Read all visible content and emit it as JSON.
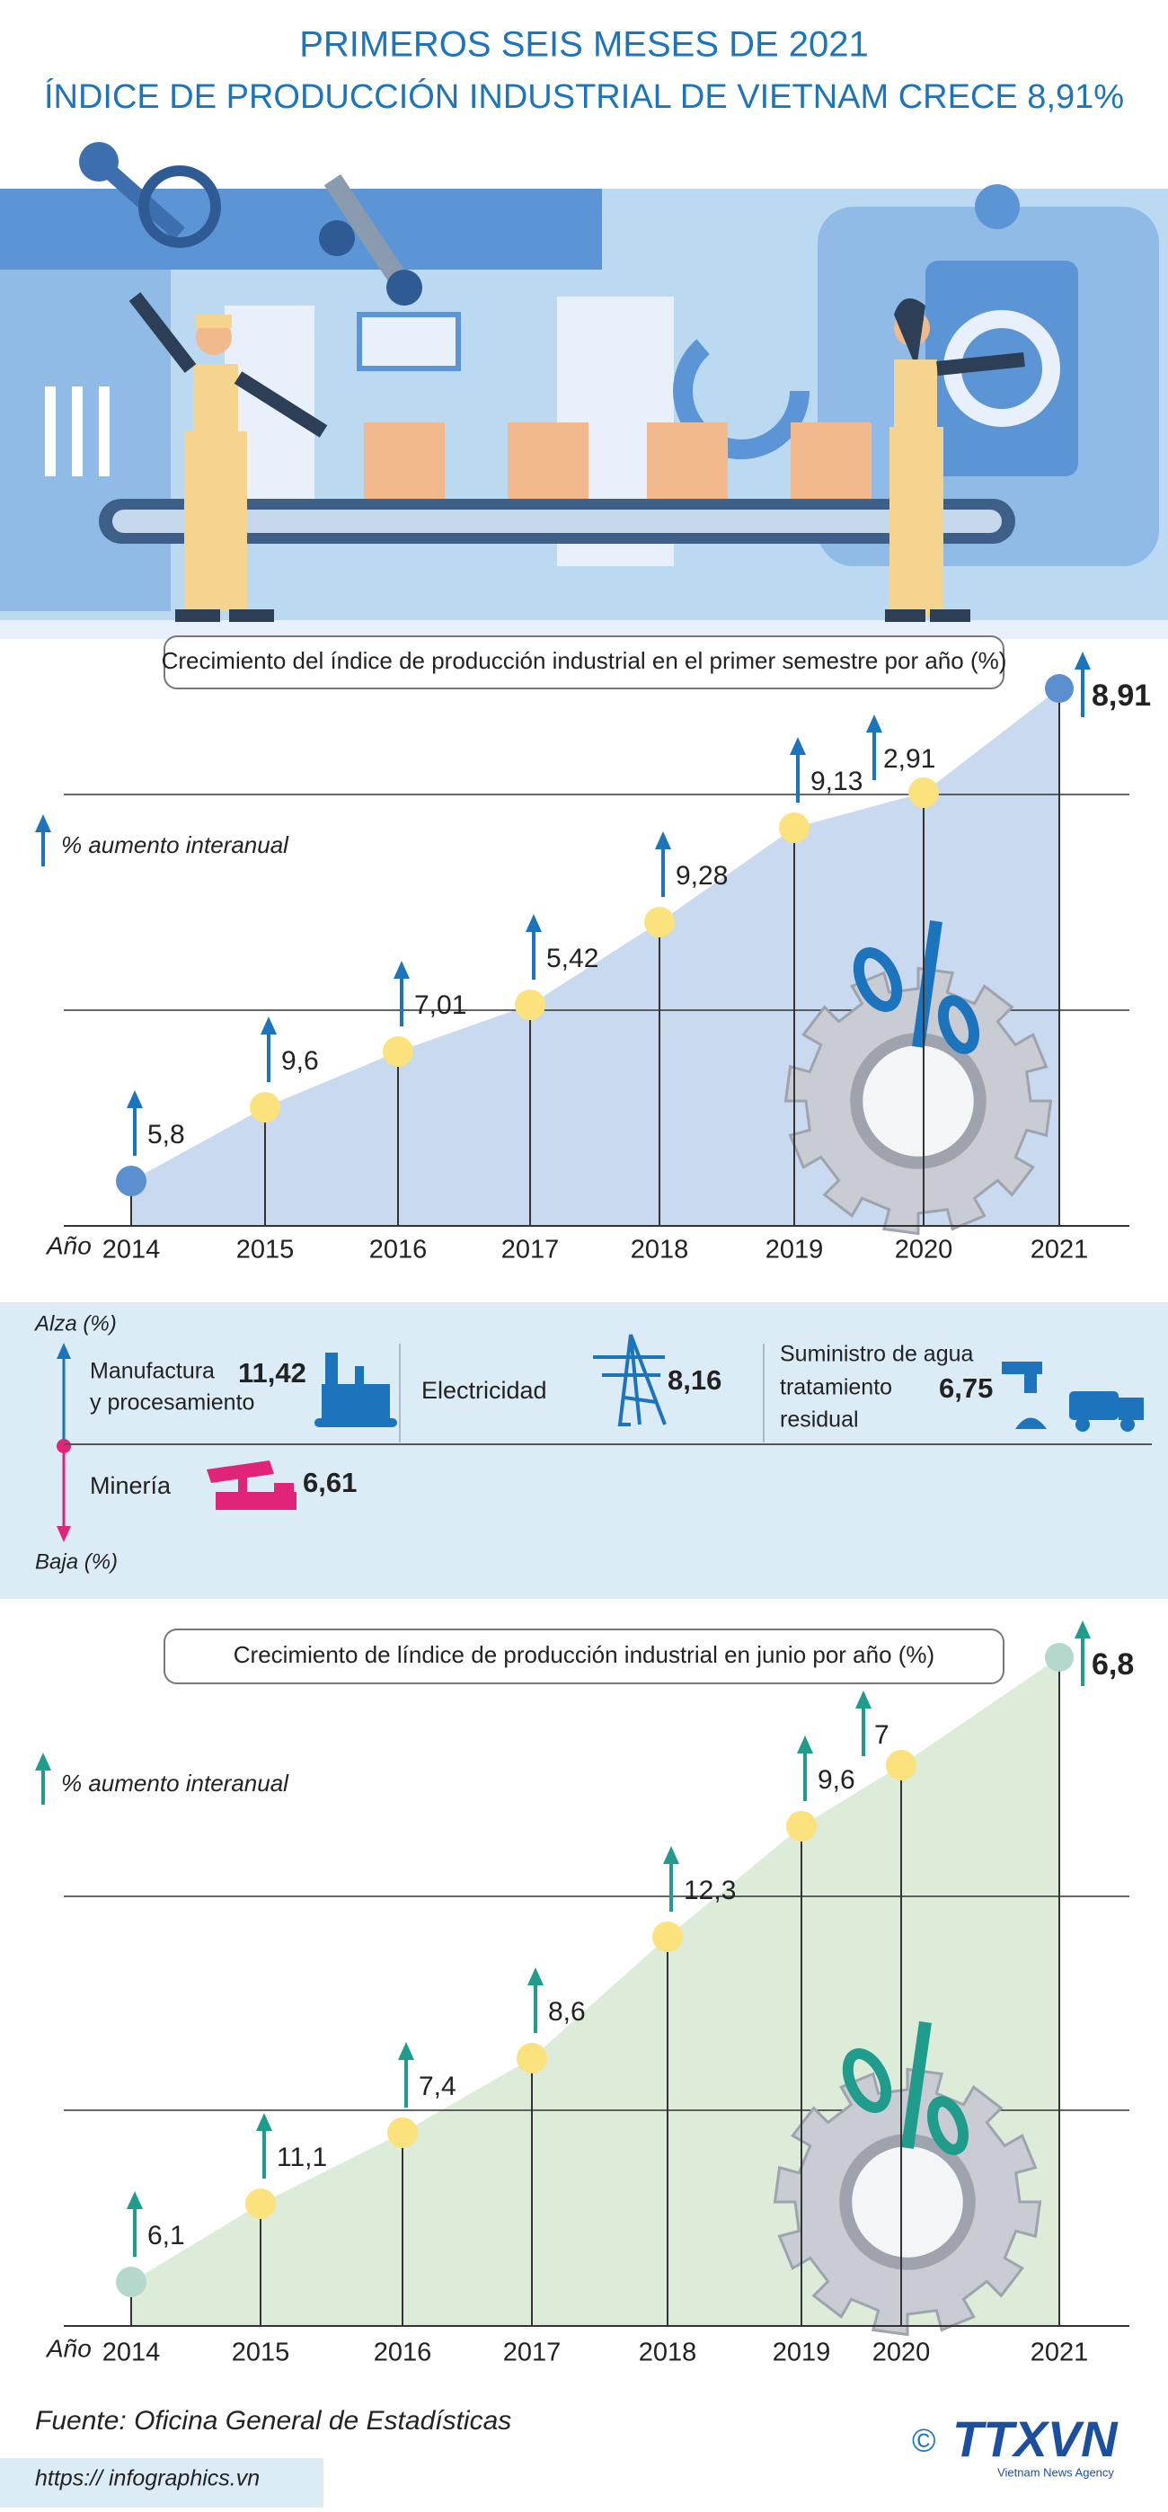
{
  "header": {
    "title": "PRIMEROS SEIS MESES DE 2021",
    "subtitle": "ÍNDICE DE PRODUCCIÓN INDUSTRIAL DE VIETNAM CRECE 8,91%"
  },
  "charts": [
    {
      "title": "Crecimiento del índice de producción industrial en el primer semestre por año (%)",
      "legend": "% aumento interanual",
      "x_label": "Año",
      "points": [
        {
          "year": "2014",
          "label": "5,8"
        },
        {
          "year": "2015",
          "label": "9,6"
        },
        {
          "year": "2016",
          "label": "7,01"
        },
        {
          "year": "2017",
          "label": "5,42"
        },
        {
          "year": "2018",
          "label": "9,28"
        },
        {
          "year": "2019",
          "label": "9,13"
        },
        {
          "year": "2020",
          "label": "2,91"
        },
        {
          "year": "2021",
          "label": "8,91"
        }
      ]
    },
    {
      "title": "Crecimiento de líndice de producción industrial en junio por año (%)",
      "legend": "% aumento interanual",
      "x_label": "Año",
      "points": [
        {
          "year": "2014",
          "label": "6,1"
        },
        {
          "year": "2015",
          "label": "11,1"
        },
        {
          "year": "2016",
          "label": "7,4"
        },
        {
          "year": "2017",
          "label": "8,6"
        },
        {
          "year": "2018",
          "label": "12,3"
        },
        {
          "year": "2019",
          "label": "9,6"
        },
        {
          "year": "2020",
          "label": "7"
        },
        {
          "year": "2021",
          "label": "6,8"
        }
      ]
    }
  ],
  "sectors": {
    "up_label": "Alza (%)",
    "down_label": "Baja (%)",
    "items": [
      {
        "name": [
          "Manufactura",
          "y procesamiento"
        ],
        "value": "11,42"
      },
      {
        "name": [
          "Electricidad"
        ],
        "value": "8,16"
      },
      {
        "name": [
          "Suministro de agua",
          "tratamiento",
          "residual"
        ],
        "value": "6,75"
      },
      {
        "name": [
          "Minería"
        ],
        "value": "6,61"
      }
    ]
  },
  "footer": {
    "source": "Fuente: Oficina General de Estadísticas",
    "url": "https:// infographics.vn",
    "copyright": "©",
    "logo": "TTXVN",
    "agency": "Vietnam News Agency"
  }
}
